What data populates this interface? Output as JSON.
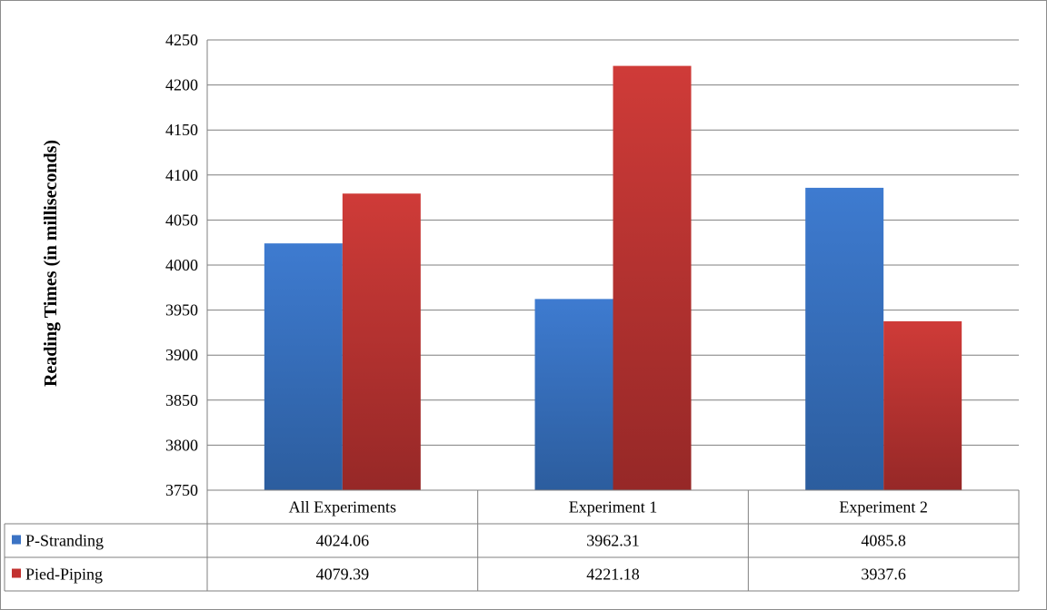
{
  "colors": {
    "p_stranding": "#3b73c4",
    "pied_piping": "#c2312f",
    "grid": "#7f7f7f"
  },
  "chart_data": {
    "type": "bar",
    "title": "",
    "xlabel": "",
    "ylabel": "Reading Times (in milliseconds)",
    "ylim": [
      3750,
      4250
    ],
    "yticks": [
      3750,
      3800,
      3850,
      3900,
      3950,
      4000,
      4050,
      4100,
      4150,
      4200,
      4250
    ],
    "categories": [
      "All Experiments",
      "Experiment 1",
      "Experiment 2"
    ],
    "series": [
      {
        "name": "P-Stranding",
        "values": [
          4024.06,
          3962.31,
          4085.8
        ],
        "labels": [
          "4024.06",
          "3962.31",
          "4085.8"
        ]
      },
      {
        "name": "Pied-Piping",
        "values": [
          4079.39,
          4221.18,
          3937.6
        ],
        "labels": [
          "4079.39",
          "4221.18",
          "3937.6"
        ]
      }
    ],
    "grid": true,
    "legend": "data-table-left"
  }
}
